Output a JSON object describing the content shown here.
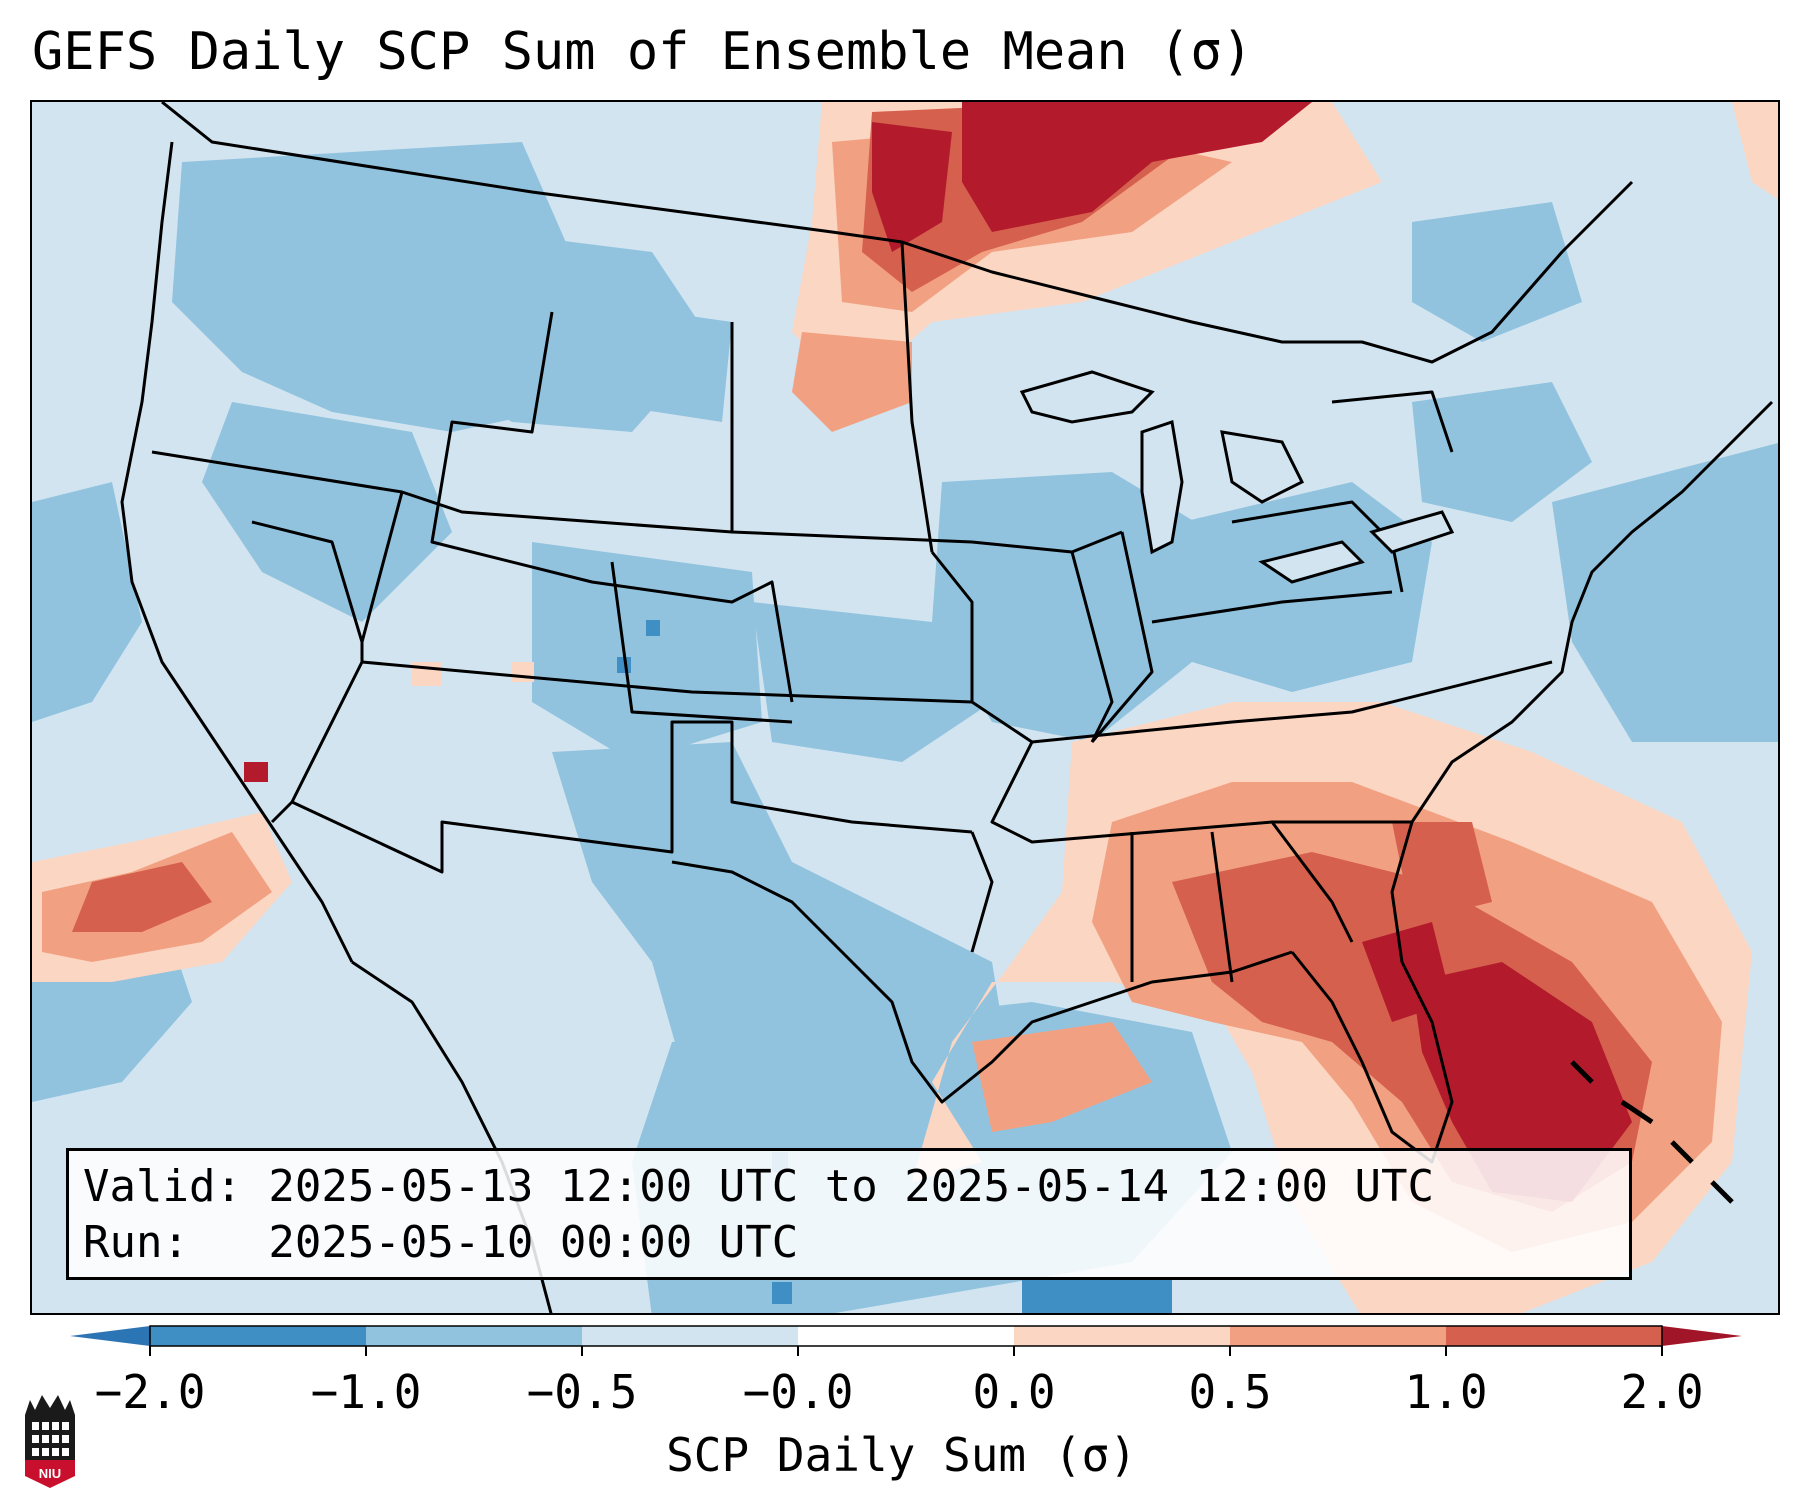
{
  "title": "GEFS Daily SCP Sum of Ensemble Mean (σ)",
  "info": {
    "valid": "Valid: 2025-05-13 12:00 UTC to 2025-05-14 12:00 UTC",
    "run": "Run:   2025-05-10 00:00 UTC"
  },
  "colorbar": {
    "label": "SCP Daily Sum (σ)",
    "ticks": [
      "−2.0",
      "−1.0",
      "−0.5",
      "−0.0",
      "0.0",
      "0.5",
      "1.0",
      "2.0"
    ],
    "colors": [
      "#3f8ec4",
      "#91c3df",
      "#d2e4f0",
      "#ffffff",
      "#fbd6c3",
      "#f1a181",
      "#d6604e",
      "#b31b2c"
    ],
    "extend_min_color": "#2c75b4",
    "extend_max_color": "#a11528"
  },
  "logo": {
    "text": "NIU"
  },
  "map": {
    "projection": "Lambert Conformal (CONUS)",
    "field": "SCP daily sum anomaly",
    "features": [
      "state-boundaries",
      "country-boundaries",
      "coastlines",
      "great-lakes"
    ],
    "highlights": [
      {
        "region": "southern Canada / Manitoba",
        "level": "1.0 to 2.0"
      },
      {
        "region": "Florida and western Atlantic",
        "level": "1.0 to 2.0"
      },
      {
        "region": "Southeast US (GA, SC, AL, MS)",
        "level": "0.5 to 1.0"
      },
      {
        "region": "northern Gulf of Mexico",
        "level": "0.0 to 0.5"
      },
      {
        "region": "Pacific off California",
        "level": "0.5 to 1.0"
      }
    ]
  }
}
